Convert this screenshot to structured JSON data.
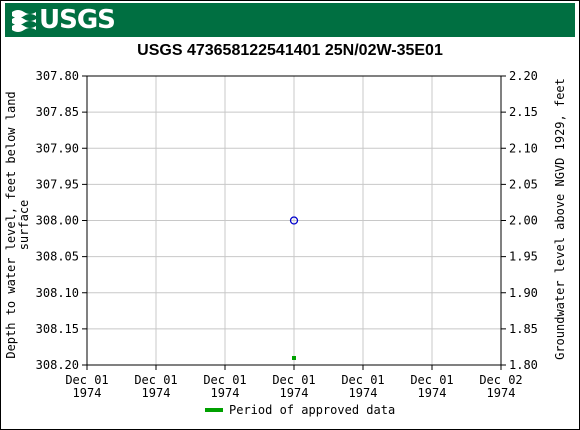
{
  "header": {
    "logo_text": "USGS",
    "logo_icon": "usgs-wave-icon",
    "color": "#006f41"
  },
  "chart_data": {
    "type": "scatter",
    "title": "USGS 473658122541401 25N/02W-35E01",
    "ylabel_left_line1": "Depth to water level, feet below land",
    "ylabel_left_line2": "surface",
    "ylabel_right": "Groundwater level above NGVD 1929, feet",
    "ylim_left": [
      307.8,
      308.2
    ],
    "ylim_right": [
      2.2,
      1.8
    ],
    "yticks_left": [
      "307.80",
      "307.85",
      "307.90",
      "307.95",
      "308.00",
      "308.05",
      "308.10",
      "308.15",
      "308.20"
    ],
    "yticks_right": [
      "2.20",
      "2.15",
      "2.10",
      "2.05",
      "2.00",
      "1.95",
      "1.90",
      "1.85",
      "1.80"
    ],
    "xticks": [
      {
        "line1": "Dec 01",
        "line2": "1974"
      },
      {
        "line1": "Dec 01",
        "line2": "1974"
      },
      {
        "line1": "Dec 01",
        "line2": "1974"
      },
      {
        "line1": "Dec 01",
        "line2": "1974"
      },
      {
        "line1": "Dec 01",
        "line2": "1974"
      },
      {
        "line1": "Dec 01",
        "line2": "1974"
      },
      {
        "line1": "Dec 02",
        "line2": "1974"
      }
    ],
    "points": [
      {
        "x": "1974-12-01 12:00",
        "depth": 308.0,
        "marker": "open-circle",
        "color": "#0000cc"
      }
    ],
    "approved_periods": [
      {
        "x": "1974-12-01 12:00",
        "color": "#00a000"
      }
    ],
    "legend": [
      {
        "label": "Period of approved data",
        "color": "#00a000"
      }
    ],
    "grid": true
  }
}
